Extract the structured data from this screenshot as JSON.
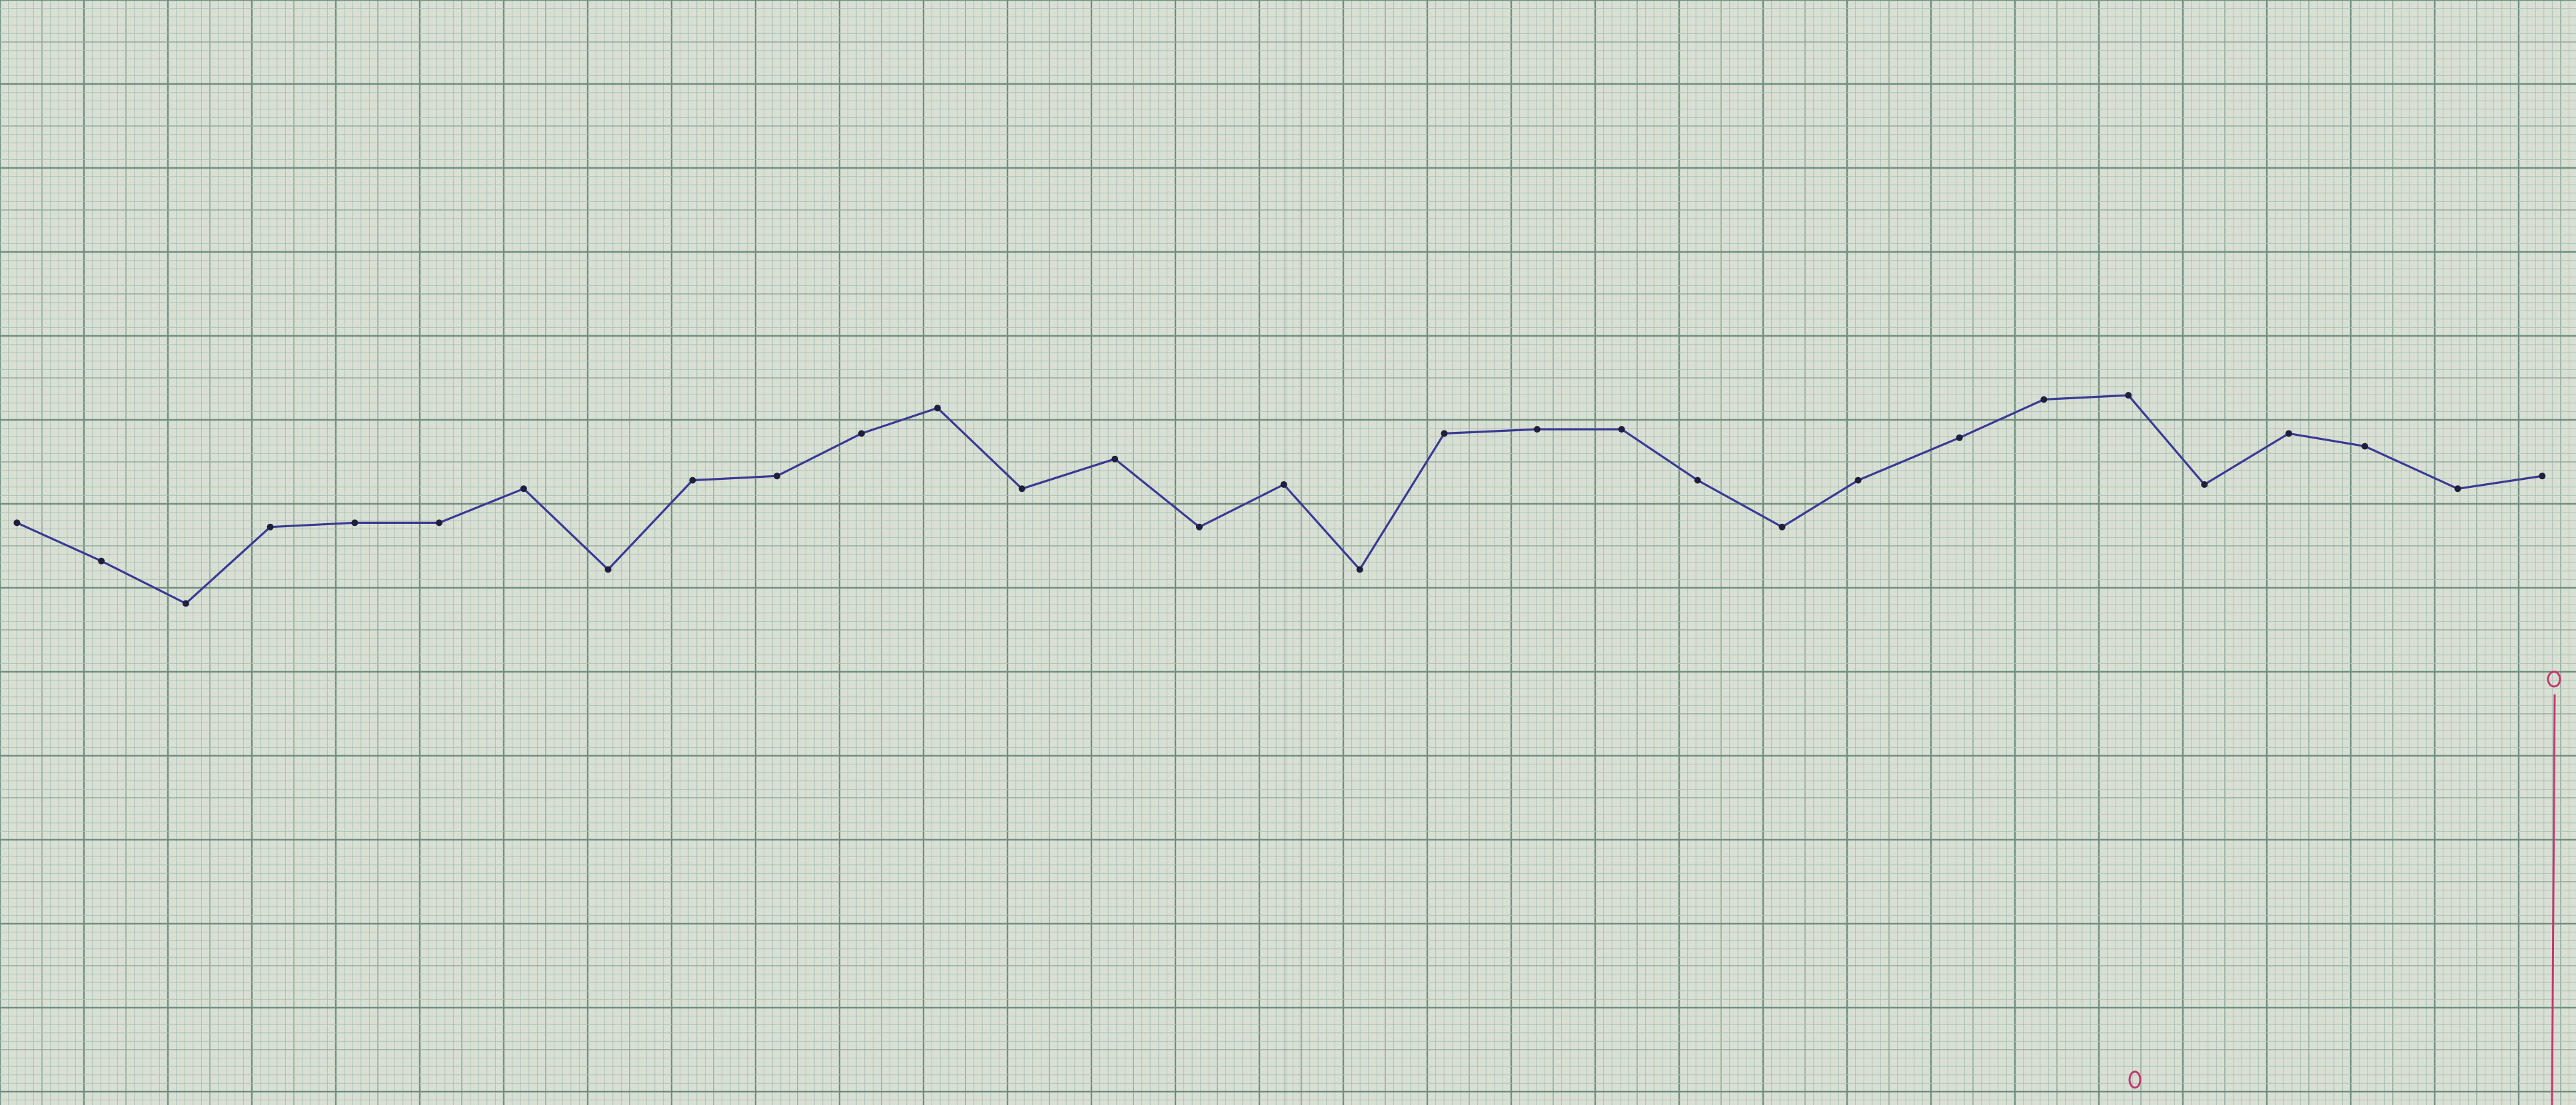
{
  "chart_data": {
    "type": "line",
    "title": "",
    "xlabel": "",
    "ylabel": "",
    "grid": true,
    "legend": "none",
    "xlim": [
      0,
      305
    ],
    "ylim": [
      0,
      130
    ],
    "series": [
      {
        "values": [
          [
            2,
            68.5
          ],
          [
            12,
            64
          ],
          [
            22,
            59
          ],
          [
            32,
            68
          ],
          [
            42,
            68.5
          ],
          [
            52,
            68.5
          ],
          [
            62,
            72.5
          ],
          [
            72,
            63
          ],
          [
            82,
            73.5
          ],
          [
            92,
            74
          ],
          [
            102,
            79
          ],
          [
            111,
            82
          ],
          [
            121,
            72.5
          ],
          [
            132,
            76
          ],
          [
            142,
            68
          ],
          [
            152,
            73
          ],
          [
            161,
            63
          ],
          [
            171,
            79
          ],
          [
            182,
            79.5
          ],
          [
            192,
            79.5
          ],
          [
            201,
            73.5
          ],
          [
            211,
            68
          ],
          [
            220,
            73.5
          ],
          [
            232,
            78.5
          ],
          [
            242,
            83
          ],
          [
            252,
            83.5
          ],
          [
            261,
            73
          ],
          [
            271,
            79
          ],
          [
            280,
            77.5
          ],
          [
            291,
            72.5
          ],
          [
            301,
            74
          ]
        ]
      }
    ],
    "colors": {
      "line": "#3a3a95",
      "point": "#1f1f3d",
      "paper": "#d9e0d3",
      "grid_fine": "#adc2b8",
      "grid_medium": "#91ab9e",
      "grid_major": "#6f8f81",
      "marker_pen": "#c4386e"
    }
  }
}
